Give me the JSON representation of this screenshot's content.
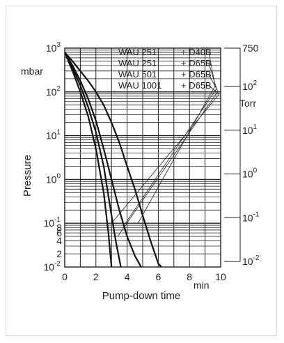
{
  "chart_data": {
    "type": "line",
    "title": "",
    "xlabel": "Pump-down time",
    "xunit": "min",
    "ylabel": "Pressure",
    "yunit_left": "mbar",
    "yunit_right": "Torr",
    "yscale": "log",
    "xlim": [
      0,
      10
    ],
    "ylim": [
      0.01,
      1000
    ],
    "grid": true,
    "x_ticks": [
      "0",
      "2",
      "4",
      "6",
      "8",
      "10"
    ],
    "y_ticks_left": [
      {
        "label": "10",
        "exp": "3",
        "value": 1000
      },
      {
        "label": "10",
        "exp": "2",
        "value": 100
      },
      {
        "label": "10",
        "exp": "1",
        "value": 10
      },
      {
        "label": "10",
        "exp": "0",
        "value": 1
      },
      {
        "label": "10",
        "exp": "-1",
        "value": 0.1
      },
      {
        "label": "8",
        "exp": "",
        "value": 0.08
      },
      {
        "label": "6",
        "exp": "",
        "value": 0.06
      },
      {
        "label": "4",
        "exp": "",
        "value": 0.04
      },
      {
        "label": "2",
        "exp": "",
        "value": 0.02
      },
      {
        "label": "10",
        "exp": "-2",
        "value": 0.01
      }
    ],
    "y_ticks_right": [
      {
        "label": "750",
        "exp": "",
        "value_torr": 750
      },
      {
        "label": "10",
        "exp": "2",
        "value_torr": 100
      },
      {
        "label": "10",
        "exp": "1",
        "value_torr": 10
      },
      {
        "label": "10",
        "exp": "0",
        "value_torr": 1
      },
      {
        "label": "10",
        "exp": "-1",
        "value_torr": 0.1
      },
      {
        "label": "10",
        "exp": "-2",
        "value_torr": 0.01
      }
    ],
    "legend_placement": "top-right",
    "series": [
      {
        "name": "WAU 251 + D40B",
        "line1": "WAU 251",
        "line2": "+ D40B",
        "x": [
          0,
          0.5,
          1,
          1.5,
          2,
          2.5,
          3,
          3.5,
          4,
          4.5,
          5,
          5.5,
          6,
          6.2
        ],
        "y": [
          800,
          500,
          300,
          180,
          100,
          50,
          20,
          7,
          2,
          0.6,
          0.15,
          0.04,
          0.012,
          0.01
        ],
        "leader_from": [
          4.7,
          0.1
        ]
      },
      {
        "name": "WAU 251 + D65B",
        "line1": "WAU 251",
        "line2": "+ D65B",
        "x": [
          0,
          0.5,
          1,
          1.5,
          2,
          2.5,
          3,
          3.5,
          4,
          4.5,
          4.9
        ],
        "y": [
          800,
          400,
          180,
          70,
          22,
          5,
          1,
          0.2,
          0.05,
          0.018,
          0.01
        ],
        "leader_from": [
          3.9,
          0.1
        ]
      },
      {
        "name": "WAU 501 + D65B",
        "line1": "WAU 501",
        "line2": "+ D65B",
        "x": [
          0,
          0.5,
          1,
          1.5,
          2,
          2.5,
          3,
          3.3,
          3.6
        ],
        "y": [
          800,
          350,
          140,
          45,
          12,
          2,
          0.15,
          0.035,
          0.01
        ],
        "leader_from": [
          3.4,
          0.05
        ]
      },
      {
        "name": "WAU 1001 + D65B",
        "line1": "WAU 1001",
        "line2": "+ D65B",
        "x": [
          0,
          0.5,
          1,
          1.5,
          2,
          2.5,
          2.8,
          3.0
        ],
        "y": [
          800,
          300,
          100,
          28,
          5,
          0.5,
          0.06,
          0.01
        ],
        "leader_from": [
          3.0,
          0.1
        ]
      }
    ]
  }
}
